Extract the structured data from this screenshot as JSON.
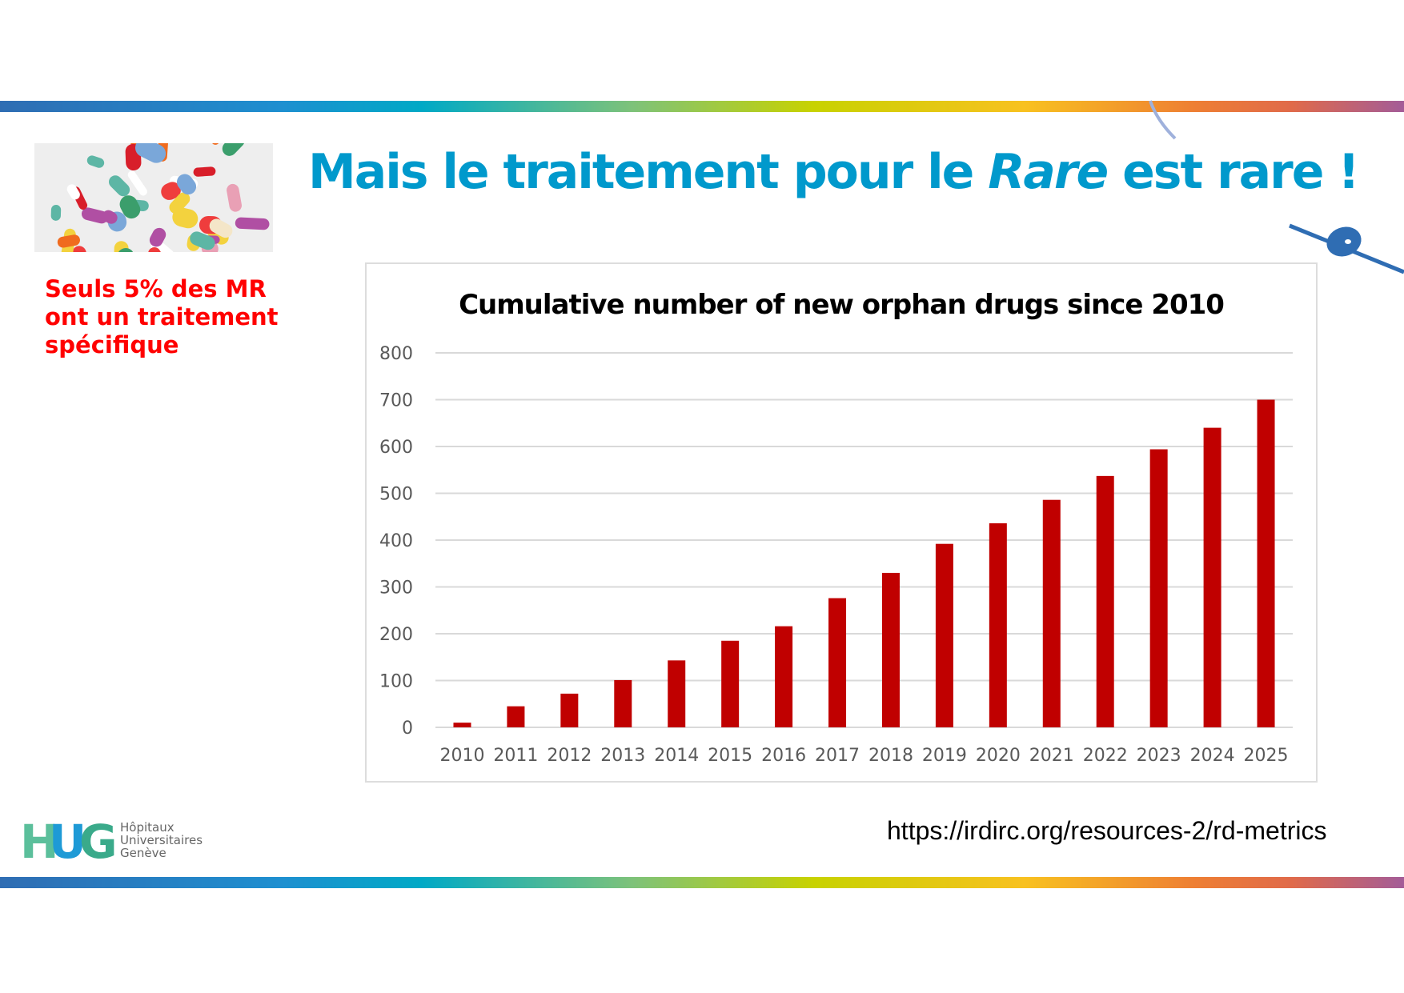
{
  "slide": {
    "title_part1": "Mais le traitement pour le ",
    "title_italic": "Rare",
    "title_part2": " est rare !",
    "side_note": "Seuls 5% des MR ont un traitement spécifique",
    "source_url": "https://irdirc.org/resources-2/rd-metrics",
    "logo": {
      "mark": "HUG",
      "line1": "Hôpitaux",
      "line2": "Universitaires",
      "line3": "Genève"
    },
    "colors": {
      "title": "#0099cc",
      "note": "#ff0000",
      "bar": "#c00000"
    }
  },
  "chart_data": {
    "type": "bar",
    "title": "Cumulative number of new orphan drugs since 2010",
    "xlabel": "",
    "ylabel": "",
    "categories": [
      "2010",
      "2011",
      "2012",
      "2013",
      "2014",
      "2015",
      "2016",
      "2017",
      "2018",
      "2019",
      "2020",
      "2021",
      "2022",
      "2023",
      "2024",
      "2025"
    ],
    "values": [
      10,
      45,
      72,
      101,
      143,
      185,
      216,
      276,
      330,
      392,
      436,
      486,
      537,
      594,
      640,
      700
    ],
    "ylim": [
      0,
      800
    ],
    "yticks": [
      0,
      100,
      200,
      300,
      400,
      500,
      600,
      700,
      800
    ],
    "grid": true,
    "legend": "none",
    "color": "#c00000"
  }
}
